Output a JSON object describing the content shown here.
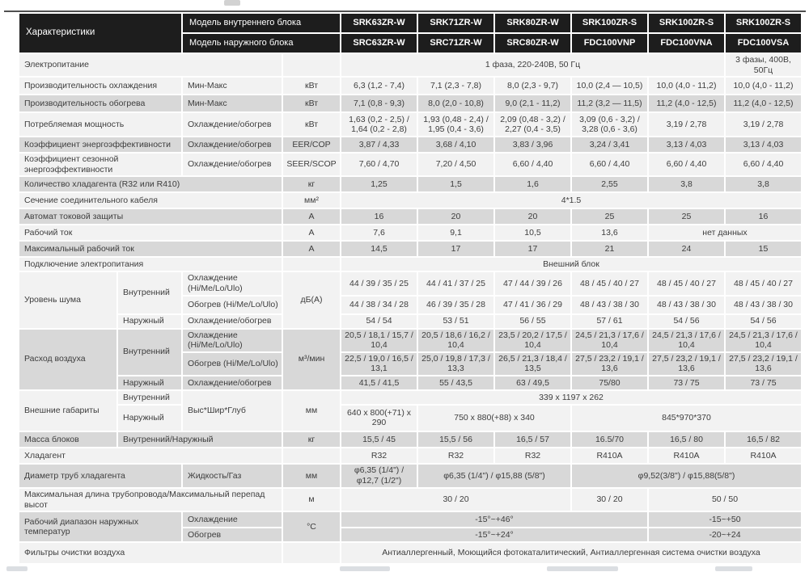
{
  "colors": {
    "header_bg": "#1d1d1d",
    "header_text": "#ffffff",
    "row_light": "#f2f2f2",
    "row_dark": "#d8d8d8",
    "text": "#3d3d3d"
  },
  "header": {
    "characteristics": "Характеристики",
    "indoor_label": "Модель внутреннего блока",
    "outdoor_label": "Модель наружного блока",
    "indoor_models": [
      "SRK63ZR-W",
      "SRK71ZR-W",
      "SRK80ZR-W",
      "SRK100ZR-S",
      "SRK100ZR-S",
      "SRK100ZR-S"
    ],
    "outdoor_models": [
      "SRC63ZR-W",
      "SRC71ZR-W",
      "SRC80ZR-W",
      "FDC100VNP",
      "FDC100VNA",
      "FDC100VSA"
    ]
  },
  "rows": [
    {
      "h": 24,
      "shade": "L",
      "cells": [
        {
          "t": "Электропитание",
          "c": 3,
          "a": "l"
        },
        {
          "t": ""
        },
        {
          "t": "1 фаза, 220-240В, 50 Гц",
          "c": 5
        },
        {
          "t": "3 фазы, 400В, 50Гц"
        }
      ]
    },
    {
      "h": 20,
      "shade": "L",
      "cells": [
        {
          "t": "Производительность охлаждения",
          "c": 2,
          "a": "l"
        },
        {
          "t": "Мин-Макс",
          "a": "l"
        },
        {
          "t": "кВт"
        },
        {
          "t": "6,3 (1,2 - 7,4)"
        },
        {
          "t": "7,1 (2,3 - 7,8)"
        },
        {
          "t": "8,0 (2,3 - 9,7)"
        },
        {
          "t": "10,0 (2,4 — 10,5)"
        },
        {
          "t": "10,0 (4,0 - 11,2)"
        },
        {
          "t": "10,0 (4,0 - 11,2)"
        }
      ]
    },
    {
      "h": 20,
      "shade": "D",
      "cells": [
        {
          "t": "Производительность обогрева",
          "c": 2,
          "a": "l"
        },
        {
          "t": "Мин-Макс",
          "a": "l"
        },
        {
          "t": "кВт"
        },
        {
          "t": "7,1 (0,8 - 9,3)"
        },
        {
          "t": "8,0 (2,0 - 10,8)"
        },
        {
          "t": "9,0 (2,1 - 11,2)"
        },
        {
          "t": "11,2 (3,2 — 11,5)"
        },
        {
          "t": "11,2 (4,0 - 12,5)"
        },
        {
          "t": "11,2 (4,0 - 12,5)"
        }
      ]
    },
    {
      "h": 28,
      "shade": "L",
      "cells": [
        {
          "t": "Потребляемая мощность",
          "c": 2,
          "a": "l"
        },
        {
          "t": "Охлаждение/обогрев",
          "a": "l"
        },
        {
          "t": "кВт"
        },
        {
          "t": "1,63 (0,2 - 2,5) / 1,64 (0,2 - 2,8)"
        },
        {
          "t": "1,93 (0,48 - 2,4) / 1,95 (0,4 - 3,6)"
        },
        {
          "t": "2,09 (0,48 - 3,2) / 2,27 (0,4 - 3,5)"
        },
        {
          "t": "3,09 (0,6 - 3,2) / 3,28 (0,6 - 3,6)"
        },
        {
          "t": "3,19 / 2,78"
        },
        {
          "t": "3,19 / 2,78"
        }
      ]
    },
    {
      "h": 18,
      "shade": "D",
      "cells": [
        {
          "t": "Коэффициент энергоэффективности",
          "c": 2,
          "a": "l"
        },
        {
          "t": "Охлаждение/обогрев",
          "a": "l"
        },
        {
          "t": "EER/COP"
        },
        {
          "t": "3,87 / 4,33"
        },
        {
          "t": "3,68 / 4,10"
        },
        {
          "t": "3,83 / 3,96"
        },
        {
          "t": "3,24 / 3,41"
        },
        {
          "t": "3,13 / 4,03"
        },
        {
          "t": "3,13 / 4,03"
        }
      ]
    },
    {
      "h": 27,
      "shade": "L",
      "cells": [
        {
          "t": "Коэффициент сезонной энергоэффективности",
          "c": 2,
          "a": "l"
        },
        {
          "t": "Охлаждение/обогрев",
          "a": "l"
        },
        {
          "t": "SEER/SCOP"
        },
        {
          "t": "7,60 / 4,70"
        },
        {
          "t": "7,20 / 4,50"
        },
        {
          "t": "6,60 / 4,40"
        },
        {
          "t": "6,60 / 4,40"
        },
        {
          "t": "6,60 / 4,40"
        },
        {
          "t": "6,60 / 4,40"
        }
      ]
    },
    {
      "h": 18,
      "shade": "D",
      "cells": [
        {
          "t": "Количество хладагента (R32 или R410)",
          "c": 3,
          "a": "l"
        },
        {
          "t": "кг"
        },
        {
          "t": "1,25"
        },
        {
          "t": "1,5"
        },
        {
          "t": "1,6"
        },
        {
          "t": "2,55"
        },
        {
          "t": "3,8"
        },
        {
          "t": "3,8"
        }
      ]
    },
    {
      "h": 18,
      "shade": "L",
      "cells": [
        {
          "t": "Сечение соединительного кабеля",
          "c": 3,
          "a": "l"
        },
        {
          "t": "мм²"
        },
        {
          "t": "4*1.5",
          "c": 6
        }
      ]
    },
    {
      "h": 18,
      "shade": "D",
      "cells": [
        {
          "t": "Автомат токовой защиты",
          "c": 3,
          "a": "l"
        },
        {
          "t": "А"
        },
        {
          "t": "16"
        },
        {
          "t": "20"
        },
        {
          "t": "20"
        },
        {
          "t": "25"
        },
        {
          "t": "25"
        },
        {
          "t": "16"
        }
      ]
    },
    {
      "h": 18,
      "shade": "L",
      "cells": [
        {
          "t": "Рабочий ток",
          "c": 3,
          "a": "l"
        },
        {
          "t": "А"
        },
        {
          "t": "7,6"
        },
        {
          "t": "9,1"
        },
        {
          "t": "10,5"
        },
        {
          "t": "13,6"
        },
        {
          "t": "нет данных",
          "c": 2
        }
      ]
    },
    {
      "h": 18,
      "shade": "D",
      "cells": [
        {
          "t": "Максимальный рабочий ток",
          "c": 3,
          "a": "l"
        },
        {
          "t": "А"
        },
        {
          "t": "14,5"
        },
        {
          "t": "17"
        },
        {
          "t": "17"
        },
        {
          "t": "21"
        },
        {
          "t": "24"
        },
        {
          "t": "15"
        }
      ]
    },
    {
      "h": 16,
      "shade": "L",
      "cells": [
        {
          "t": "Подключение электропитания",
          "c": 3,
          "a": "l"
        },
        {
          "t": ""
        },
        {
          "t": "Внешний блок",
          "c": 6
        }
      ]
    },
    {
      "h": 21,
      "shade": "L",
      "cells": [
        {
          "t": "Уровень шума",
          "r": 3,
          "a": "l"
        },
        {
          "t": "Внутренний",
          "r": 2,
          "a": "l"
        },
        {
          "t": "Охлаждение (Hi/Me/Lo/Ulo)",
          "a": "l"
        },
        {
          "t": "дБ(А)",
          "r": 3
        },
        {
          "t": "44 / 39 / 35 / 25"
        },
        {
          "t": "44 / 41 / 37 / 25"
        },
        {
          "t": "47 / 44 / 39 / 26"
        },
        {
          "t": "48 / 45 / 40 / 27"
        },
        {
          "t": "48 / 45 / 40 / 27"
        },
        {
          "t": "48 / 45 / 40 / 27"
        }
      ]
    },
    {
      "h": 21,
      "shade": "L",
      "cells": [
        {
          "t": "Обогрев (Hi/Me/Lo/Ulo)",
          "a": "l"
        },
        {
          "t": "44 / 38 / 34 / 28"
        },
        {
          "t": "46 / 39 / 35 / 28"
        },
        {
          "t": "47 / 41 / 36 / 29"
        },
        {
          "t": "48 / 43 / 38 / 30"
        },
        {
          "t": "48 / 43 / 38 / 30"
        },
        {
          "t": "48 / 43 / 38 / 30"
        }
      ]
    },
    {
      "h": 16,
      "shade": "L",
      "cells": [
        {
          "t": "Наружный",
          "a": "l"
        },
        {
          "t": "Охлаждение/обогрев",
          "a": "l"
        },
        {
          "t": "54 / 54"
        },
        {
          "t": "53 / 51"
        },
        {
          "t": "56 / 55"
        },
        {
          "t": "57 / 61"
        },
        {
          "t": "54 / 56"
        },
        {
          "t": "54 / 56"
        }
      ]
    },
    {
      "h": 27,
      "shade": "D",
      "cells": [
        {
          "t": "Расход воздуха",
          "r": 3,
          "a": "l"
        },
        {
          "t": "Внутренний",
          "r": 2,
          "a": "l"
        },
        {
          "t": "Охлаждение (Hi/Me/Lo/Ulo)",
          "a": "l"
        },
        {
          "t": "м³/мин",
          "r": 3
        },
        {
          "t": "20,5 / 18,1 / 15,7 / 10,4"
        },
        {
          "t": "20,5 / 18,6 / 16,2 / 10,4"
        },
        {
          "t": "23,5 / 20,2 / 17,5 / 10,4"
        },
        {
          "t": "24,5 / 21,3 / 17,6 / 10,4"
        },
        {
          "t": "24,5 / 21,3 / 17,6 / 10,4"
        },
        {
          "t": "24,5 / 21,3 / 17,6 / 10,4"
        }
      ]
    },
    {
      "h": 26,
      "shade": "D",
      "cells": [
        {
          "t": "Обогрев (Hi/Me/Lo/Ulo)",
          "a": "l"
        },
        {
          "t": "22,5 / 19,0 / 16,5 / 13,1"
        },
        {
          "t": "25,0 / 19,8 / 17,3 / 13,3"
        },
        {
          "t": "26,5 / 21,3 / 18,4 / 13,5"
        },
        {
          "t": "27,5 / 23,2 / 19,1 / 13,6"
        },
        {
          "t": "27,5 / 23,2 / 19,1 / 13,6"
        },
        {
          "t": "27,5 / 23,2 / 19,1 / 13,6"
        }
      ]
    },
    {
      "h": 16,
      "shade": "D",
      "cells": [
        {
          "t": "Наружный",
          "a": "l"
        },
        {
          "t": "Охлаждение/обогрев",
          "a": "l"
        },
        {
          "t": "41,5 / 41,5"
        },
        {
          "t": "55 / 43,5"
        },
        {
          "t": "63 / 49,5"
        },
        {
          "t": "75/80"
        },
        {
          "t": "73 / 75"
        },
        {
          "t": "73 / 75"
        }
      ]
    },
    {
      "h": 16,
      "shade": "L",
      "cells": [
        {
          "t": "Внешние габариты",
          "r": 2,
          "a": "l"
        },
        {
          "t": "Внутренний",
          "a": "l"
        },
        {
          "t": "Выс*Шир*Глуб",
          "r": 2,
          "a": "l"
        },
        {
          "t": "мм",
          "r": 2
        },
        {
          "t": "339 x 1197 x 262",
          "c": 6
        }
      ]
    },
    {
      "h": 31,
      "shade": "L",
      "cells": [
        {
          "t": "Наружный",
          "a": "l"
        },
        {
          "t": "640 x 800(+71) x 290"
        },
        {
          "t": "750 x 880(+88) x 340",
          "c": 2
        },
        {
          "t": "845*970*370",
          "c": 3
        }
      ]
    },
    {
      "h": 18,
      "shade": "D",
      "cells": [
        {
          "t": "Масса блоков",
          "a": "l"
        },
        {
          "t": "Внутренний/Наружный",
          "c": 2,
          "a": "l"
        },
        {
          "t": "кг"
        },
        {
          "t": "15,5 / 45"
        },
        {
          "t": "15,5 / 56"
        },
        {
          "t": "16,5 / 57"
        },
        {
          "t": "16.5/70"
        },
        {
          "t": "16,5 / 80"
        },
        {
          "t": "16,5 / 82"
        }
      ]
    },
    {
      "h": 18,
      "shade": "L",
      "cells": [
        {
          "t": "Хладагент",
          "c": 3,
          "a": "l"
        },
        {
          "t": ""
        },
        {
          "t": "R32"
        },
        {
          "t": "R32"
        },
        {
          "t": "R32"
        },
        {
          "t": "R410A"
        },
        {
          "t": "R410A"
        },
        {
          "t": "R410A"
        }
      ]
    },
    {
      "h": 28,
      "shade": "D",
      "cells": [
        {
          "t": "Диаметр труб хладагента",
          "c": 2,
          "a": "l"
        },
        {
          "t": "Жидкость/Газ",
          "a": "l"
        },
        {
          "t": "мм"
        },
        {
          "t": "φ6,35 (1/4\") / φ12,7 (1/2\")"
        },
        {
          "t": "φ6,35 (1/4\") / φ15,88 (5/8\")",
          "c": 2
        },
        {
          "t": "φ9,52(3/8\") / φ15,88(5/8\")",
          "c": 3
        }
      ]
    },
    {
      "h": 25,
      "shade": "L",
      "cells": [
        {
          "t": "Максимальная длина трубопровода/Максимальный перепад высот",
          "c": 3,
          "a": "l"
        },
        {
          "t": "м"
        },
        {
          "t": "30 / 20",
          "c": 3
        },
        {
          "t": "30 / 20"
        },
        {
          "t": "50 / 50",
          "c": 2
        }
      ]
    },
    {
      "h": 18,
      "shade": "D",
      "cells": [
        {
          "t": "Рабочий диапазон наружных температур",
          "r": 2,
          "c": 2,
          "a": "l"
        },
        {
          "t": "Охлаждение",
          "a": "l"
        },
        {
          "t": "°С",
          "r": 2
        },
        {
          "t": "-15°~+46°",
          "c": 4
        },
        {
          "t": "-15~+50",
          "c": 2
        }
      ]
    },
    {
      "h": 16,
      "shade": "D",
      "cells": [
        {
          "t": "Обогрев",
          "a": "l"
        },
        {
          "t": "-15°~+24°",
          "c": 4
        },
        {
          "t": "-20~+24",
          "c": 2
        }
      ]
    },
    {
      "h": 25,
      "shade": "L",
      "cells": [
        {
          "t": "Фильтры очистки воздуха",
          "c": 3,
          "a": "l"
        },
        {
          "t": ""
        },
        {
          "t": "Антиаллергенный, Моющийся фотокаталитический, Антиаллергенная система очистки воздуха",
          "c": 6
        }
      ]
    }
  ]
}
